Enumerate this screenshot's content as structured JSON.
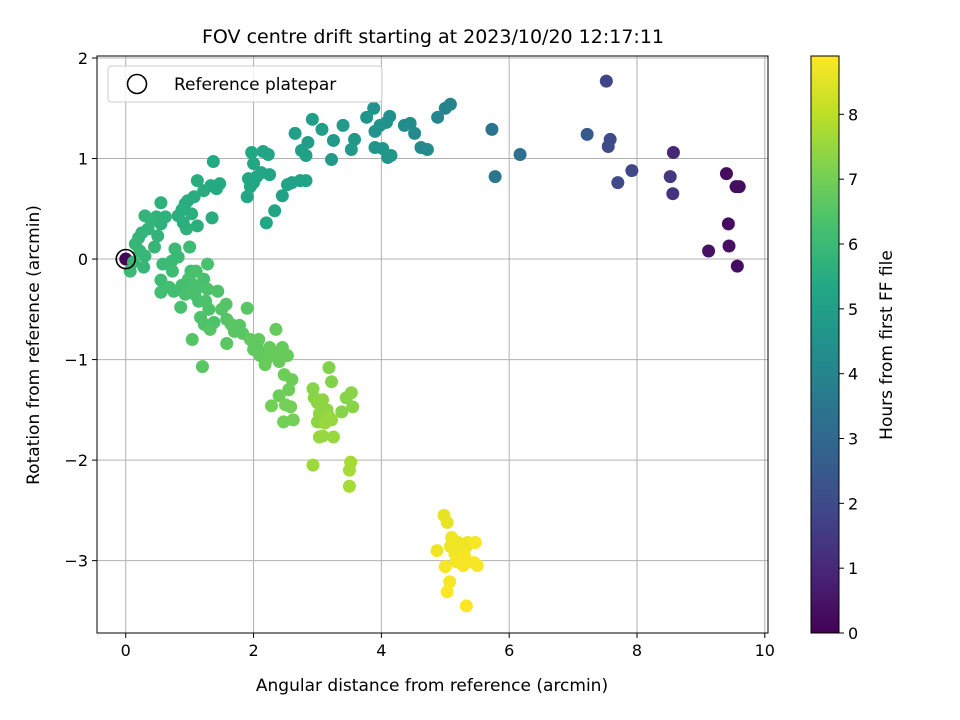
{
  "chart_data": {
    "type": "scatter",
    "title": "FOV centre drift starting at 2023/10/20 12:17:11",
    "xlabel": "Angular distance from reference (arcmin)",
    "ylabel": "Rotation from reference (arcmin)",
    "xlim": [
      -0.45,
      10.05
    ],
    "ylim": [
      -3.72,
      2.02
    ],
    "xticks": [
      0,
      2,
      4,
      6,
      8,
      10
    ],
    "yticks": [
      -3,
      -2,
      -1,
      0,
      1,
      2
    ],
    "xtick_labels": [
      "0",
      "2",
      "4",
      "6",
      "8",
      "10"
    ],
    "ytick_labels": [
      "−3",
      "−2",
      "−1",
      "0",
      "1",
      "2"
    ],
    "grid": true,
    "legend": {
      "location": "upper left",
      "entries": [
        "Reference platepar"
      ]
    },
    "reference_point": {
      "label": "Reference platepar",
      "x": 0,
      "y": 0
    },
    "colorbar": {
      "label": "Hours from first FF file",
      "range": [
        0,
        8.9
      ],
      "ticks": [
        0,
        1,
        2,
        3,
        4,
        5,
        6,
        7,
        8
      ],
      "tick_labels": [
        "0",
        "1",
        "2",
        "3",
        "4",
        "5",
        "6",
        "7",
        "8"
      ],
      "colormap": "viridis"
    },
    "points": [
      {
        "x": 0.0,
        "y": 0.0,
        "h": 0.1
      },
      {
        "x": 9.12,
        "y": 0.08,
        "h": 0.4
      },
      {
        "x": 9.4,
        "y": 0.85,
        "h": 0.3
      },
      {
        "x": 9.43,
        "y": 0.35,
        "h": 0.3
      },
      {
        "x": 9.44,
        "y": 0.13,
        "h": 0.4
      },
      {
        "x": 9.55,
        "y": 0.72,
        "h": 0.3
      },
      {
        "x": 9.6,
        "y": 0.72,
        "h": 0.3
      },
      {
        "x": 9.57,
        "y": -0.07,
        "h": 0.3
      },
      {
        "x": 8.57,
        "y": 1.06,
        "h": 1.0
      },
      {
        "x": 8.52,
        "y": 0.82,
        "h": 1.4
      },
      {
        "x": 8.56,
        "y": 0.65,
        "h": 1.3
      },
      {
        "x": 7.52,
        "y": 1.77,
        "h": 1.8
      },
      {
        "x": 7.58,
        "y": 1.19,
        "h": 2.0
      },
      {
        "x": 7.55,
        "y": 1.12,
        "h": 2.0
      },
      {
        "x": 7.92,
        "y": 0.88,
        "h": 1.9
      },
      {
        "x": 7.7,
        "y": 0.76,
        "h": 2.0
      },
      {
        "x": 7.22,
        "y": 1.24,
        "h": 2.5
      },
      {
        "x": 6.17,
        "y": 1.04,
        "h": 3.3
      },
      {
        "x": 5.73,
        "y": 1.29,
        "h": 3.4
      },
      {
        "x": 5.78,
        "y": 0.82,
        "h": 3.5
      },
      {
        "x": 5.08,
        "y": 1.54,
        "h": 4.0
      },
      {
        "x": 5.0,
        "y": 1.5,
        "h": 4.0
      },
      {
        "x": 4.88,
        "y": 1.41,
        "h": 4.1
      },
      {
        "x": 4.72,
        "y": 1.09,
        "h": 4.2
      },
      {
        "x": 4.62,
        "y": 1.11,
        "h": 4.2
      },
      {
        "x": 4.52,
        "y": 1.25,
        "h": 4.2
      },
      {
        "x": 4.45,
        "y": 1.35,
        "h": 4.3
      },
      {
        "x": 4.36,
        "y": 1.33,
        "h": 4.3
      },
      {
        "x": 4.13,
        "y": 1.42,
        "h": 4.4
      },
      {
        "x": 4.08,
        "y": 1.36,
        "h": 4.4
      },
      {
        "x": 3.98,
        "y": 1.33,
        "h": 4.5
      },
      {
        "x": 3.9,
        "y": 1.27,
        "h": 4.5
      },
      {
        "x": 3.88,
        "y": 1.5,
        "h": 4.5
      },
      {
        "x": 3.77,
        "y": 1.41,
        "h": 4.6
      },
      {
        "x": 3.9,
        "y": 1.11,
        "h": 4.6
      },
      {
        "x": 4.02,
        "y": 1.1,
        "h": 4.6
      },
      {
        "x": 4.1,
        "y": 1.01,
        "h": 4.6
      },
      {
        "x": 4.15,
        "y": 1.03,
        "h": 4.7
      },
      {
        "x": 3.58,
        "y": 1.19,
        "h": 4.7
      },
      {
        "x": 3.53,
        "y": 1.09,
        "h": 4.8
      },
      {
        "x": 3.4,
        "y": 1.33,
        "h": 4.8
      },
      {
        "x": 3.25,
        "y": 1.18,
        "h": 4.8
      },
      {
        "x": 3.07,
        "y": 1.29,
        "h": 4.9
      },
      {
        "x": 2.92,
        "y": 1.39,
        "h": 4.9
      },
      {
        "x": 2.85,
        "y": 1.16,
        "h": 4.9
      },
      {
        "x": 2.82,
        "y": 1.03,
        "h": 5.0
      },
      {
        "x": 2.65,
        "y": 1.25,
        "h": 5.0
      },
      {
        "x": 2.75,
        "y": 1.08,
        "h": 5.0
      },
      {
        "x": 2.73,
        "y": 0.78,
        "h": 5.0
      },
      {
        "x": 2.82,
        "y": 0.78,
        "h": 5.1
      },
      {
        "x": 2.6,
        "y": 0.76,
        "h": 5.1
      },
      {
        "x": 2.53,
        "y": 0.74,
        "h": 5.1
      },
      {
        "x": 2.45,
        "y": 0.63,
        "h": 5.1
      },
      {
        "x": 3.22,
        "y": 0.99,
        "h": 4.8
      },
      {
        "x": 2.33,
        "y": 0.48,
        "h": 5.2
      },
      {
        "x": 2.2,
        "y": 0.36,
        "h": 5.3
      },
      {
        "x": 2.25,
        "y": 0.84,
        "h": 5.2
      },
      {
        "x": 2.12,
        "y": 0.86,
        "h": 5.2
      },
      {
        "x": 2.05,
        "y": 0.82,
        "h": 5.3
      },
      {
        "x": 2.0,
        "y": 0.76,
        "h": 5.3
      },
      {
        "x": 1.95,
        "y": 0.72,
        "h": 5.3
      },
      {
        "x": 1.9,
        "y": 0.62,
        "h": 5.3
      },
      {
        "x": 1.92,
        "y": 0.8,
        "h": 5.3
      },
      {
        "x": 2.15,
        "y": 1.07,
        "h": 5.2
      },
      {
        "x": 2.23,
        "y": 1.04,
        "h": 5.2
      },
      {
        "x": 1.97,
        "y": 1.06,
        "h": 5.3
      },
      {
        "x": 2.0,
        "y": 0.95,
        "h": 5.3
      },
      {
        "x": 1.37,
        "y": 0.97,
        "h": 5.4
      },
      {
        "x": 1.47,
        "y": 0.75,
        "h": 5.4
      },
      {
        "x": 1.42,
        "y": 0.7,
        "h": 5.4
      },
      {
        "x": 1.33,
        "y": 0.73,
        "h": 5.4
      },
      {
        "x": 1.22,
        "y": 0.68,
        "h": 5.5
      },
      {
        "x": 1.12,
        "y": 0.78,
        "h": 5.5
      },
      {
        "x": 1.07,
        "y": 0.62,
        "h": 5.5
      },
      {
        "x": 0.97,
        "y": 0.58,
        "h": 5.5
      },
      {
        "x": 0.93,
        "y": 0.55,
        "h": 5.5
      },
      {
        "x": 0.88,
        "y": 0.49,
        "h": 5.6
      },
      {
        "x": 0.82,
        "y": 0.43,
        "h": 5.6
      },
      {
        "x": 1.03,
        "y": 0.45,
        "h": 5.6
      },
      {
        "x": 1.12,
        "y": 0.33,
        "h": 5.6
      },
      {
        "x": 0.95,
        "y": 0.3,
        "h": 5.7
      },
      {
        "x": 0.9,
        "y": 0.36,
        "h": 5.6
      },
      {
        "x": 1.35,
        "y": 0.41,
        "h": 5.5
      },
      {
        "x": 0.55,
        "y": 0.56,
        "h": 5.7
      },
      {
        "x": 0.62,
        "y": 0.42,
        "h": 5.7
      },
      {
        "x": 0.55,
        "y": 0.35,
        "h": 5.7
      },
      {
        "x": 0.48,
        "y": 0.42,
        "h": 5.7
      },
      {
        "x": 0.4,
        "y": 0.38,
        "h": 5.8
      },
      {
        "x": 0.3,
        "y": 0.43,
        "h": 5.8
      },
      {
        "x": 0.35,
        "y": 0.3,
        "h": 5.8
      },
      {
        "x": 0.25,
        "y": 0.26,
        "h": 5.8
      },
      {
        "x": 0.2,
        "y": 0.21,
        "h": 5.8
      },
      {
        "x": 0.15,
        "y": 0.15,
        "h": 5.9
      },
      {
        "x": 0.22,
        "y": 0.08,
        "h": 5.9
      },
      {
        "x": 0.3,
        "y": 0.03,
        "h": 5.9
      },
      {
        "x": 0.28,
        "y": -0.08,
        "h": 5.9
      },
      {
        "x": 0.12,
        "y": -0.03,
        "h": 5.9
      },
      {
        "x": 0.07,
        "y": -0.12,
        "h": 6.0
      },
      {
        "x": 0.45,
        "y": 0.12,
        "h": 5.9
      },
      {
        "x": 0.5,
        "y": 0.23,
        "h": 5.8
      },
      {
        "x": 0.58,
        "y": -0.05,
        "h": 6.0
      },
      {
        "x": 0.72,
        "y": -0.02,
        "h": 6.0
      },
      {
        "x": 0.82,
        "y": 0.02,
        "h": 6.0
      },
      {
        "x": 1.0,
        "y": 0.12,
        "h": 6.1
      },
      {
        "x": 0.55,
        "y": -0.21,
        "h": 6.1
      },
      {
        "x": 0.55,
        "y": -0.33,
        "h": 6.2
      },
      {
        "x": 0.68,
        "y": -0.28,
        "h": 6.2
      },
      {
        "x": 0.75,
        "y": -0.32,
        "h": 6.2
      },
      {
        "x": 0.88,
        "y": -0.26,
        "h": 6.2
      },
      {
        "x": 0.93,
        "y": -0.35,
        "h": 6.3
      },
      {
        "x": 0.86,
        "y": -0.48,
        "h": 6.3
      },
      {
        "x": 1.03,
        "y": -0.24,
        "h": 6.3
      },
      {
        "x": 1.08,
        "y": -0.35,
        "h": 6.3
      },
      {
        "x": 1.14,
        "y": -0.42,
        "h": 6.3
      },
      {
        "x": 1.2,
        "y": -0.27,
        "h": 6.3
      },
      {
        "x": 1.28,
        "y": -0.3,
        "h": 6.4
      },
      {
        "x": 1.25,
        "y": -0.42,
        "h": 6.4
      },
      {
        "x": 1.3,
        "y": -0.5,
        "h": 6.4
      },
      {
        "x": 1.17,
        "y": -0.58,
        "h": 6.4
      },
      {
        "x": 1.23,
        "y": -0.65,
        "h": 6.4
      },
      {
        "x": 1.38,
        "y": -0.63,
        "h": 6.4
      },
      {
        "x": 1.32,
        "y": -0.7,
        "h": 6.5
      },
      {
        "x": 1.04,
        "y": -0.8,
        "h": 6.5
      },
      {
        "x": 1.2,
        "y": -1.07,
        "h": 6.6
      },
      {
        "x": 1.02,
        "y": -0.12,
        "h": 6.2
      },
      {
        "x": 1.1,
        "y": -0.12,
        "h": 6.3
      },
      {
        "x": 1.28,
        "y": -0.05,
        "h": 6.3
      },
      {
        "x": 0.73,
        "y": -0.12,
        "h": 6.1
      },
      {
        "x": 0.77,
        "y": 0.1,
        "h": 6.0
      },
      {
        "x": 0.98,
        "y": -0.2,
        "h": 6.3
      },
      {
        "x": 1.22,
        "y": -0.2,
        "h": 6.3
      },
      {
        "x": 1.44,
        "y": -0.32,
        "h": 6.4
      },
      {
        "x": 1.5,
        "y": -0.5,
        "h": 6.5
      },
      {
        "x": 1.57,
        "y": -0.45,
        "h": 6.5
      },
      {
        "x": 1.58,
        "y": -0.6,
        "h": 6.5
      },
      {
        "x": 1.65,
        "y": -0.65,
        "h": 6.6
      },
      {
        "x": 1.7,
        "y": -0.72,
        "h": 6.6
      },
      {
        "x": 1.78,
        "y": -0.66,
        "h": 6.6
      },
      {
        "x": 1.83,
        "y": -0.74,
        "h": 6.6
      },
      {
        "x": 1.58,
        "y": -0.84,
        "h": 6.6
      },
      {
        "x": 1.9,
        "y": -0.49,
        "h": 6.6
      },
      {
        "x": 1.95,
        "y": -0.8,
        "h": 6.7
      },
      {
        "x": 2.0,
        "y": -0.9,
        "h": 6.7
      },
      {
        "x": 2.05,
        "y": -0.85,
        "h": 6.7
      },
      {
        "x": 2.1,
        "y": -0.96,
        "h": 6.7
      },
      {
        "x": 2.15,
        "y": -0.94,
        "h": 6.7
      },
      {
        "x": 2.2,
        "y": -1.0,
        "h": 6.8
      },
      {
        "x": 2.25,
        "y": -0.88,
        "h": 6.8
      },
      {
        "x": 2.33,
        "y": -0.94,
        "h": 6.8
      },
      {
        "x": 2.4,
        "y": -1.02,
        "h": 6.8
      },
      {
        "x": 2.45,
        "y": -0.88,
        "h": 6.8
      },
      {
        "x": 2.35,
        "y": -0.7,
        "h": 6.8
      },
      {
        "x": 2.48,
        "y": -1.15,
        "h": 6.9
      },
      {
        "x": 2.55,
        "y": -1.3,
        "h": 6.9
      },
      {
        "x": 2.6,
        "y": -1.2,
        "h": 6.9
      },
      {
        "x": 2.4,
        "y": -1.36,
        "h": 6.9
      },
      {
        "x": 2.28,
        "y": -1.46,
        "h": 7.0
      },
      {
        "x": 2.5,
        "y": -1.45,
        "h": 7.0
      },
      {
        "x": 2.58,
        "y": -1.47,
        "h": 7.0
      },
      {
        "x": 2.47,
        "y": -1.62,
        "h": 7.0
      },
      {
        "x": 2.62,
        "y": -1.6,
        "h": 7.0
      },
      {
        "x": 2.08,
        "y": -0.8,
        "h": 6.7
      },
      {
        "x": 2.18,
        "y": -1.05,
        "h": 6.8
      },
      {
        "x": 2.53,
        "y": -0.96,
        "h": 6.8
      },
      {
        "x": 3.18,
        "y": -1.08,
        "h": 7.2
      },
      {
        "x": 3.22,
        "y": -1.22,
        "h": 7.2
      },
      {
        "x": 3.45,
        "y": -1.38,
        "h": 7.3
      },
      {
        "x": 3.53,
        "y": -1.33,
        "h": 7.3
      },
      {
        "x": 3.55,
        "y": -1.47,
        "h": 7.3
      },
      {
        "x": 3.38,
        "y": -1.52,
        "h": 7.3
      },
      {
        "x": 2.93,
        "y": -1.29,
        "h": 7.3
      },
      {
        "x": 2.95,
        "y": -1.38,
        "h": 7.3
      },
      {
        "x": 3.0,
        "y": -1.43,
        "h": 7.4
      },
      {
        "x": 3.08,
        "y": -1.4,
        "h": 7.4
      },
      {
        "x": 3.03,
        "y": -1.54,
        "h": 7.4
      },
      {
        "x": 3.1,
        "y": -1.58,
        "h": 7.4
      },
      {
        "x": 3.15,
        "y": -1.5,
        "h": 7.4
      },
      {
        "x": 3.05,
        "y": -1.62,
        "h": 7.4
      },
      {
        "x": 3.0,
        "y": -1.62,
        "h": 7.4
      },
      {
        "x": 3.12,
        "y": -1.63,
        "h": 7.5
      },
      {
        "x": 3.18,
        "y": -1.57,
        "h": 7.5
      },
      {
        "x": 3.22,
        "y": -1.6,
        "h": 7.5
      },
      {
        "x": 3.03,
        "y": -1.77,
        "h": 7.5
      },
      {
        "x": 3.08,
        "y": -1.76,
        "h": 7.5
      },
      {
        "x": 3.25,
        "y": -1.77,
        "h": 7.5
      },
      {
        "x": 2.93,
        "y": -2.05,
        "h": 7.6
      },
      {
        "x": 3.52,
        "y": -2.02,
        "h": 7.7
      },
      {
        "x": 3.5,
        "y": -2.1,
        "h": 7.7
      },
      {
        "x": 3.5,
        "y": -2.26,
        "h": 7.7
      },
      {
        "x": 4.98,
        "y": -2.55,
        "h": 8.6
      },
      {
        "x": 5.03,
        "y": -2.62,
        "h": 8.6
      },
      {
        "x": 5.1,
        "y": -2.77,
        "h": 8.7
      },
      {
        "x": 5.2,
        "y": -2.82,
        "h": 8.7
      },
      {
        "x": 5.08,
        "y": -2.86,
        "h": 8.7
      },
      {
        "x": 4.87,
        "y": -2.9,
        "h": 8.7
      },
      {
        "x": 5.15,
        "y": -2.93,
        "h": 8.7
      },
      {
        "x": 5.25,
        "y": -2.93,
        "h": 8.7
      },
      {
        "x": 5.33,
        "y": -2.86,
        "h": 8.7
      },
      {
        "x": 5.35,
        "y": -2.82,
        "h": 8.7
      },
      {
        "x": 5.47,
        "y": -2.82,
        "h": 8.8
      },
      {
        "x": 5.3,
        "y": -2.95,
        "h": 8.8
      },
      {
        "x": 5.17,
        "y": -3.01,
        "h": 8.8
      },
      {
        "x": 5.28,
        "y": -3.05,
        "h": 8.8
      },
      {
        "x": 5.45,
        "y": -3.02,
        "h": 8.8
      },
      {
        "x": 5.5,
        "y": -3.05,
        "h": 8.8
      },
      {
        "x": 5.0,
        "y": -3.06,
        "h": 8.8
      },
      {
        "x": 5.07,
        "y": -3.21,
        "h": 8.8
      },
      {
        "x": 5.03,
        "y": -3.31,
        "h": 8.9
      },
      {
        "x": 5.33,
        "y": -3.45,
        "h": 8.9
      }
    ]
  }
}
